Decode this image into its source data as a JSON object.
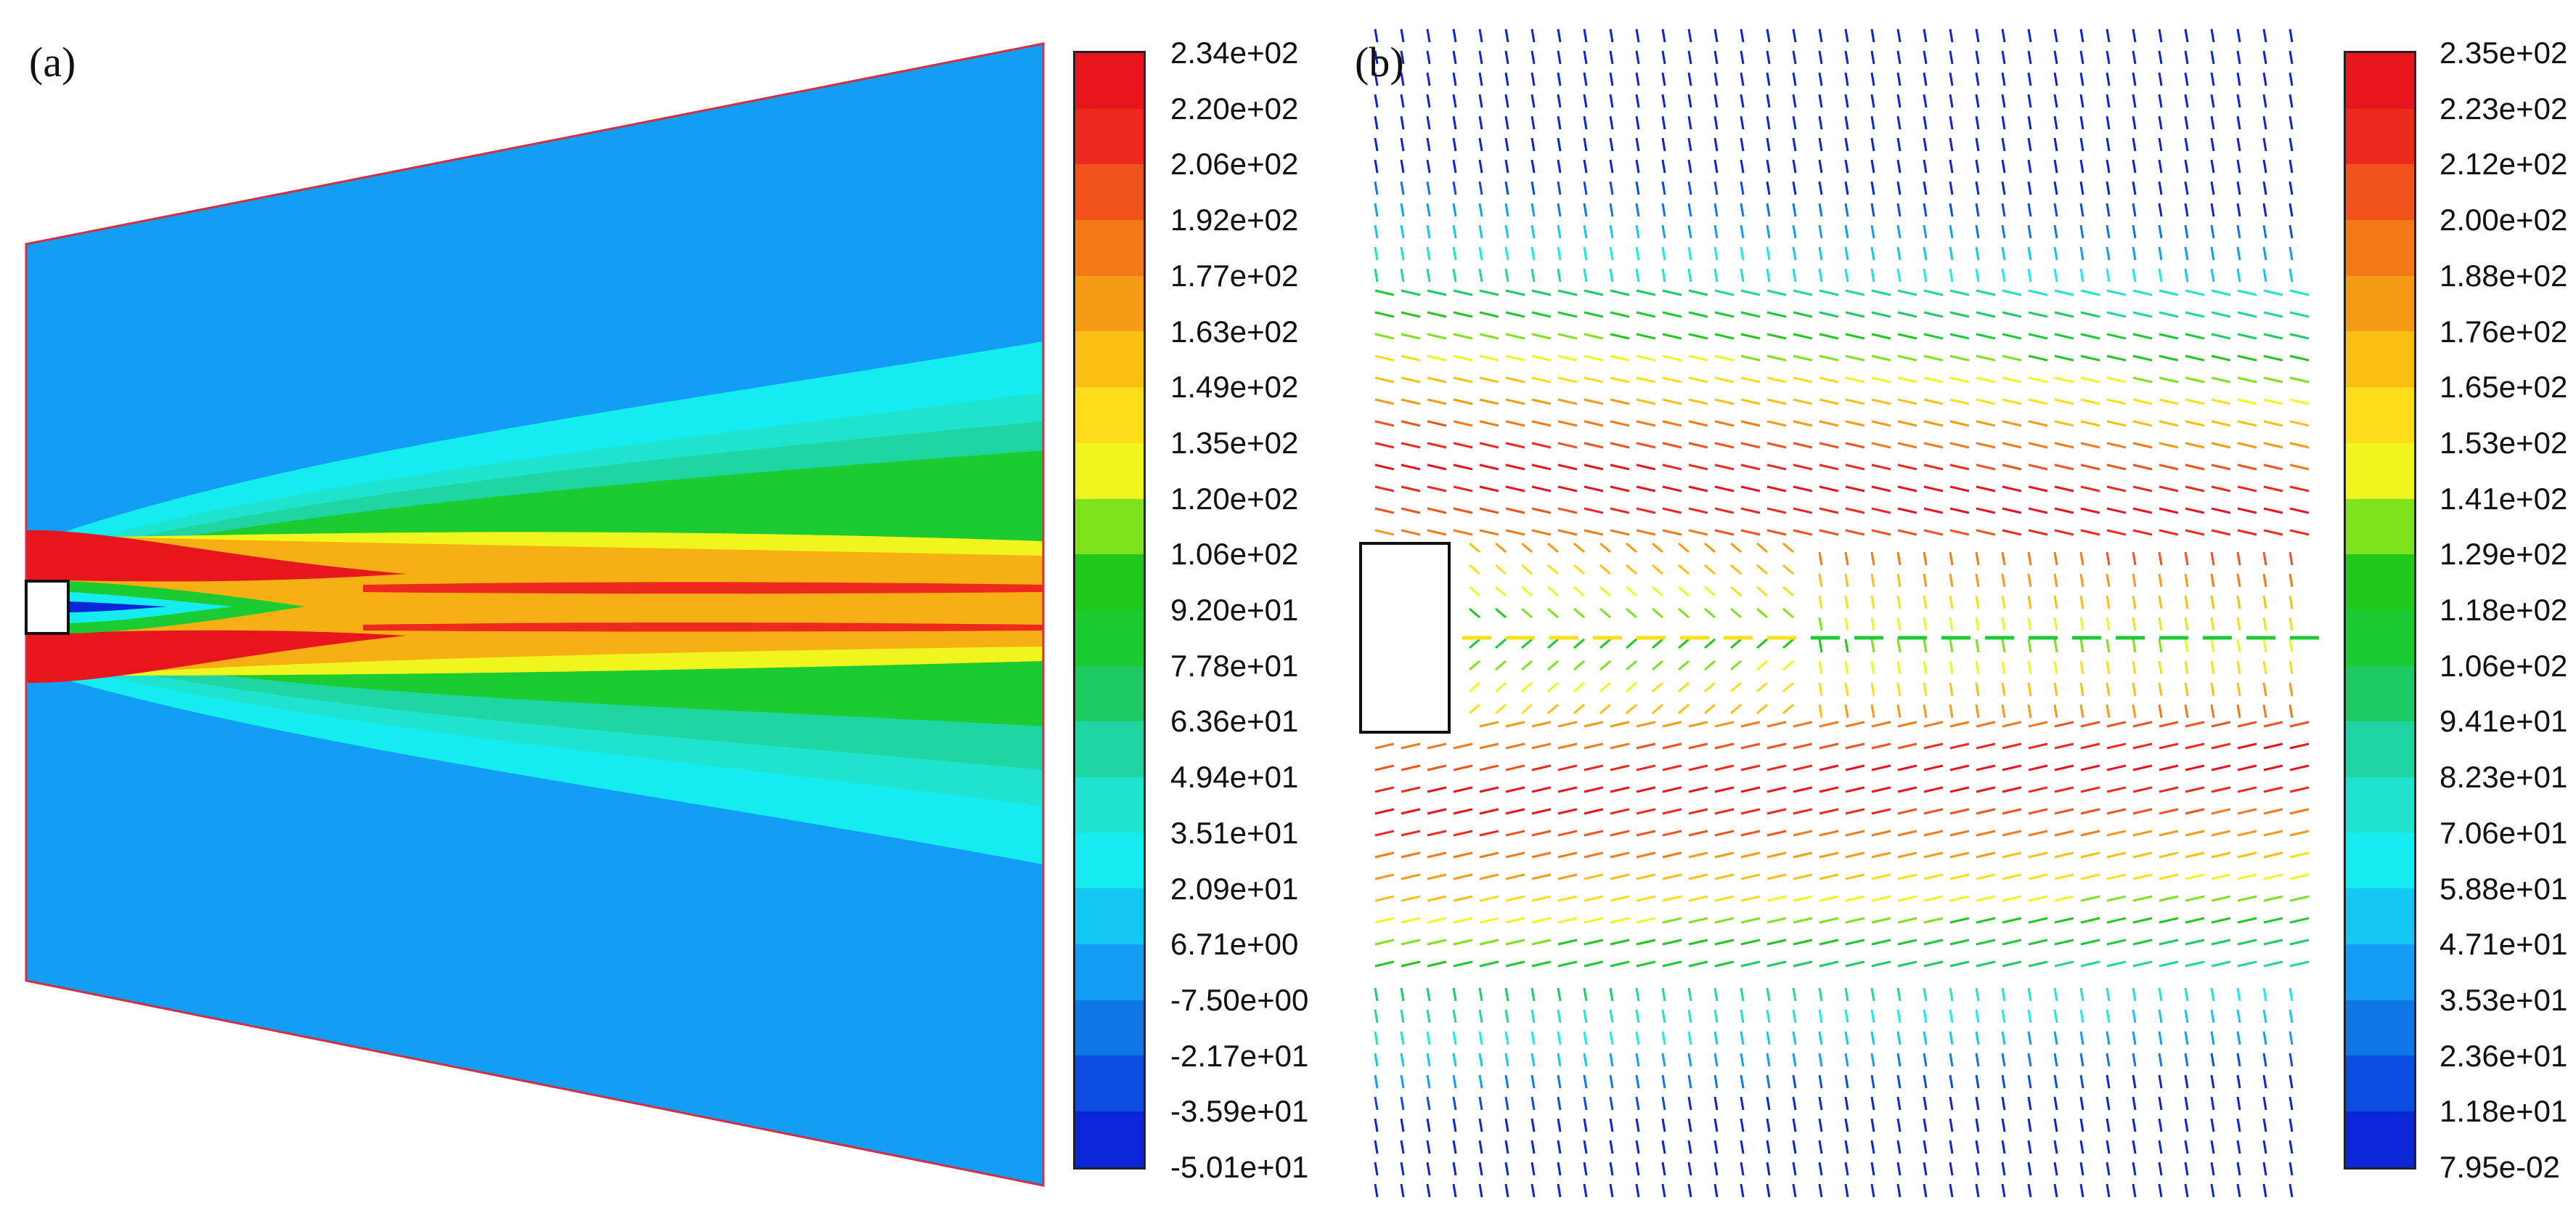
{
  "panels": [
    {
      "id": "a",
      "label": "(a)",
      "colorbar": {
        "labels": [
          "2.34e+02",
          "2.20e+02",
          "2.06e+02",
          "1.92e+02",
          "1.77e+02",
          "1.63e+02",
          "1.49e+02",
          "1.35e+02",
          "1.20e+02",
          "1.06e+02",
          "9.20e+01",
          "7.78e+01",
          "6.36e+01",
          "4.94e+01",
          "3.51e+01",
          "2.09e+01",
          "6.71e+00",
          "-7.50e+00",
          "-2.17e+01",
          "-3.59e+01",
          "-5.01e+01"
        ]
      }
    },
    {
      "id": "b",
      "label": "(b)",
      "colorbar": {
        "labels": [
          "2.35e+02",
          "2.23e+02",
          "2.12e+02",
          "2.00e+02",
          "1.88e+02",
          "1.76e+02",
          "1.65e+02",
          "1.53e+02",
          "1.41e+02",
          "1.29e+02",
          "1.18e+02",
          "1.06e+02",
          "9.41e+01",
          "8.23e+01",
          "7.06e+01",
          "5.88e+01",
          "4.71e+01",
          "3.53e+01",
          "2.36e+01",
          "1.18e+01",
          "7.95e-02"
        ]
      }
    }
  ],
  "colors": {
    "scale": [
      "#e8141e",
      "#ee2a1e",
      "#f2531c",
      "#f47a18",
      "#f79a14",
      "#fbbf14",
      "#fbde18",
      "#f1f51e",
      "#7ee21c",
      "#21c81c",
      "#1ccb32",
      "#1ccc62",
      "#20d6a0",
      "#1ee4cf",
      "#15ecef",
      "#12c8f2",
      "#129ef5",
      "#0f78e6",
      "#0c4ce0",
      "#0a26d6"
    ],
    "outline": "#d03040",
    "arrow_default": "#1aa0e6"
  }
}
